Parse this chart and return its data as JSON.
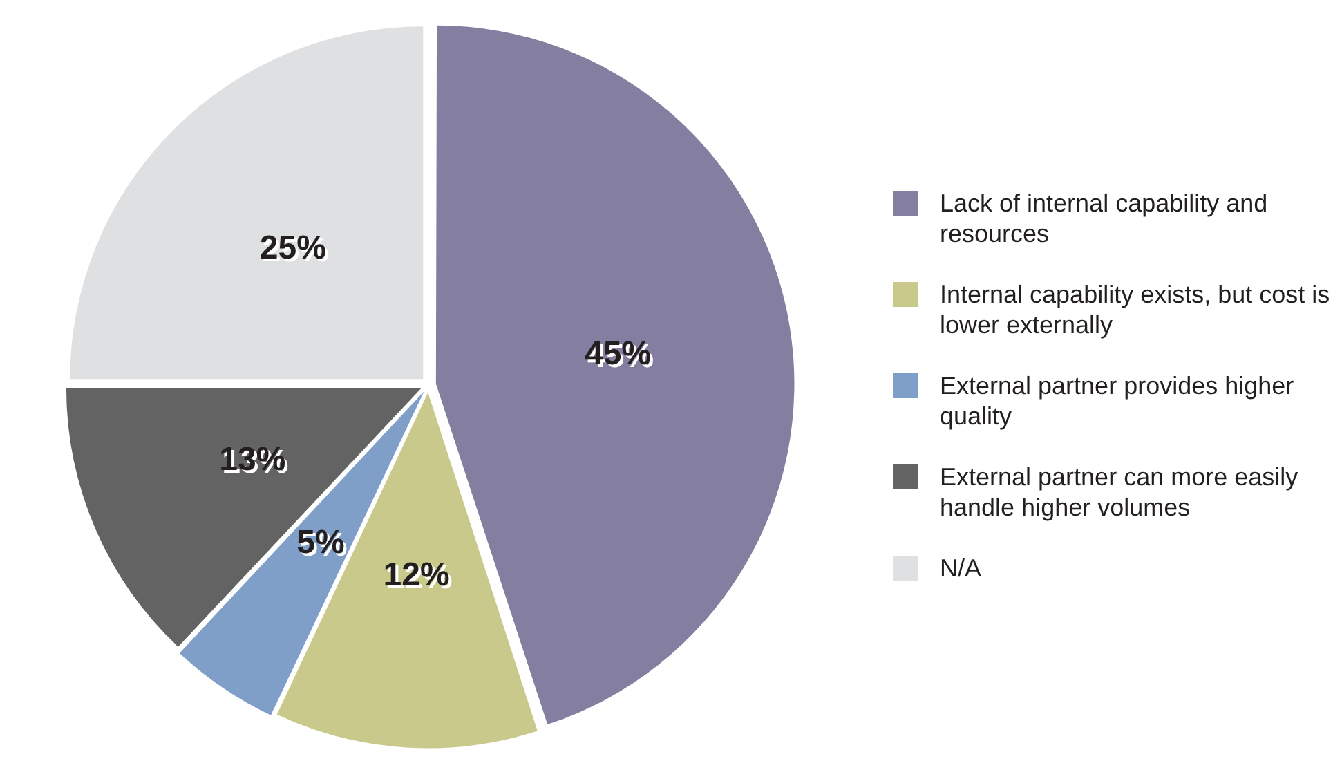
{
  "chart_data": {
    "type": "pie",
    "categories": [
      "Lack of internal capability and resources",
      "Internal capability exists, but cost is lower externally",
      "External partner provides higher quality",
      "External partner can more easily handle higher volumes",
      "N/A"
    ],
    "values": [
      45,
      12,
      5,
      13,
      25
    ],
    "colors": [
      "#847fa0",
      "#c9c98b",
      "#7f9fc9",
      "#636363",
      "#dfe0e2"
    ],
    "value_labels": [
      "45%",
      "12%",
      "5%",
      "13%",
      "25%"
    ],
    "legend": "right"
  }
}
